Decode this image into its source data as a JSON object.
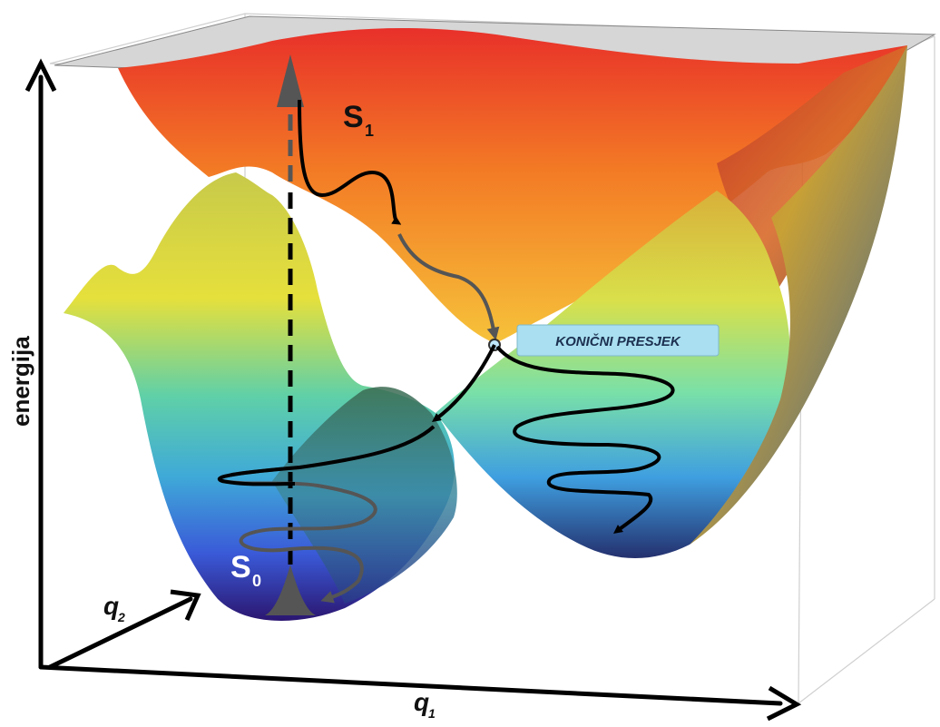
{
  "axes": {
    "energy_label": "energija",
    "q1_label": "q",
    "q1_sub": "1",
    "q2_label": "q",
    "q2_sub": "2"
  },
  "states": {
    "s1_label": "S",
    "s1_sub": "1",
    "s0_label": "S",
    "s0_sub": "0"
  },
  "conical_intersection": {
    "label": "KONIČNI PRESJEK",
    "box_color": "#a9dff0"
  },
  "colors": {
    "surface_high": "#e8302a",
    "surface_mid_high": "#f6a623",
    "surface_mid": "#e7e03a",
    "surface_mid_low": "#46c7b2",
    "surface_low": "#3a6fe0",
    "surface_bottom": "#2b1670",
    "path_dark": "#000000",
    "path_grey": "#555555"
  }
}
